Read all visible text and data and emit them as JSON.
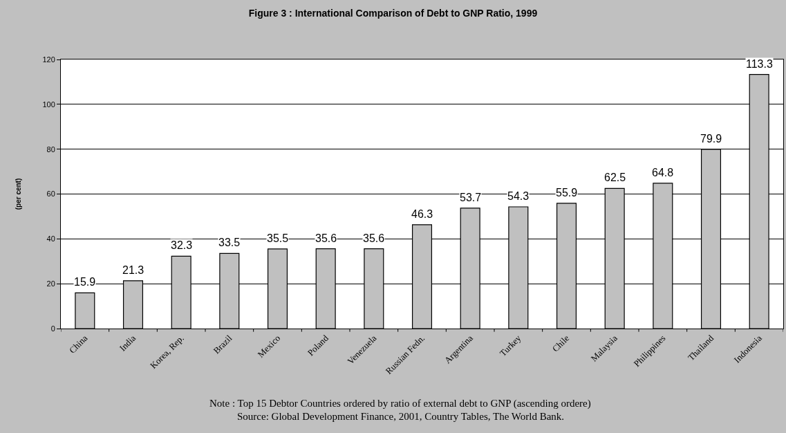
{
  "chart_data": {
    "type": "bar",
    "title": "Figure 3 : International Comparison of Debt to GNP Ratio, 1999",
    "ylabel": "(per cent)",
    "categories": [
      "China",
      "India",
      "Korea, Rep.",
      "Brazil",
      "Mexico",
      "Poland",
      "Venezuela",
      "Russian Fedn.",
      "Argentina",
      "Turkey",
      "Chile",
      "Malaysia",
      "Philippines",
      "Thailand",
      "Indonesia"
    ],
    "values": [
      15.9,
      21.3,
      32.3,
      33.5,
      35.5,
      35.6,
      35.6,
      46.3,
      53.7,
      54.3,
      55.9,
      62.5,
      64.8,
      79.9,
      113.3
    ],
    "color": "#c0c0c0",
    "data_labels": true,
    "ylim": [
      0,
      120
    ],
    "yticks": [
      0,
      20,
      40,
      60,
      80,
      100,
      120
    ],
    "grid": "y",
    "annotations": [
      "Note : Top 15 Debtor Countries ordered by ratio of external debt to GNP (ascending ordere)",
      "Source: Global Development Finance, 2001, Country Tables, The World Bank."
    ]
  }
}
